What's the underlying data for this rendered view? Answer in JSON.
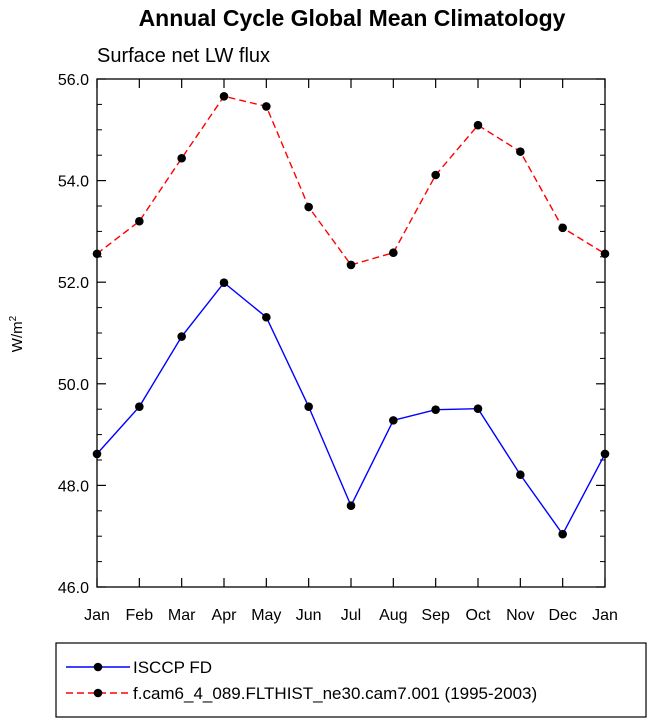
{
  "chart_data": {
    "type": "line",
    "title": "Annual Cycle Global Mean Climatology",
    "subtitle": "Surface net LW flux",
    "ylabel_base": "W/m",
    "ylabel_sup": "2",
    "ylim": [
      46.0,
      56.0
    ],
    "yticks": [
      "46.0",
      "48.0",
      "50.0",
      "52.0",
      "54.0",
      "56.0"
    ],
    "ytick_values": [
      46,
      48,
      50,
      52,
      54,
      56
    ],
    "categories": [
      "Jan",
      "Feb",
      "Mar",
      "Apr",
      "May",
      "Jun",
      "Jul",
      "Aug",
      "Sep",
      "Oct",
      "Nov",
      "Dec",
      "Jan"
    ],
    "series": [
      {
        "name": "ISCCP FD",
        "color": "#0000ff",
        "dash": "solid",
        "values": [
          48.62,
          49.55,
          50.93,
          51.99,
          51.31,
          49.55,
          47.6,
          49.28,
          49.49,
          49.51,
          48.21,
          47.04,
          48.62
        ]
      },
      {
        "name": "f.cam6_4_089.FLTHIST_ne30.cam7.001 (1995-2003)",
        "color": "#ff0000",
        "dash": "dashed",
        "values": [
          52.56,
          53.2,
          54.44,
          55.66,
          55.46,
          53.48,
          52.34,
          52.58,
          54.11,
          55.09,
          54.57,
          53.07,
          52.56
        ]
      }
    ],
    "legend_position": "bottom"
  }
}
